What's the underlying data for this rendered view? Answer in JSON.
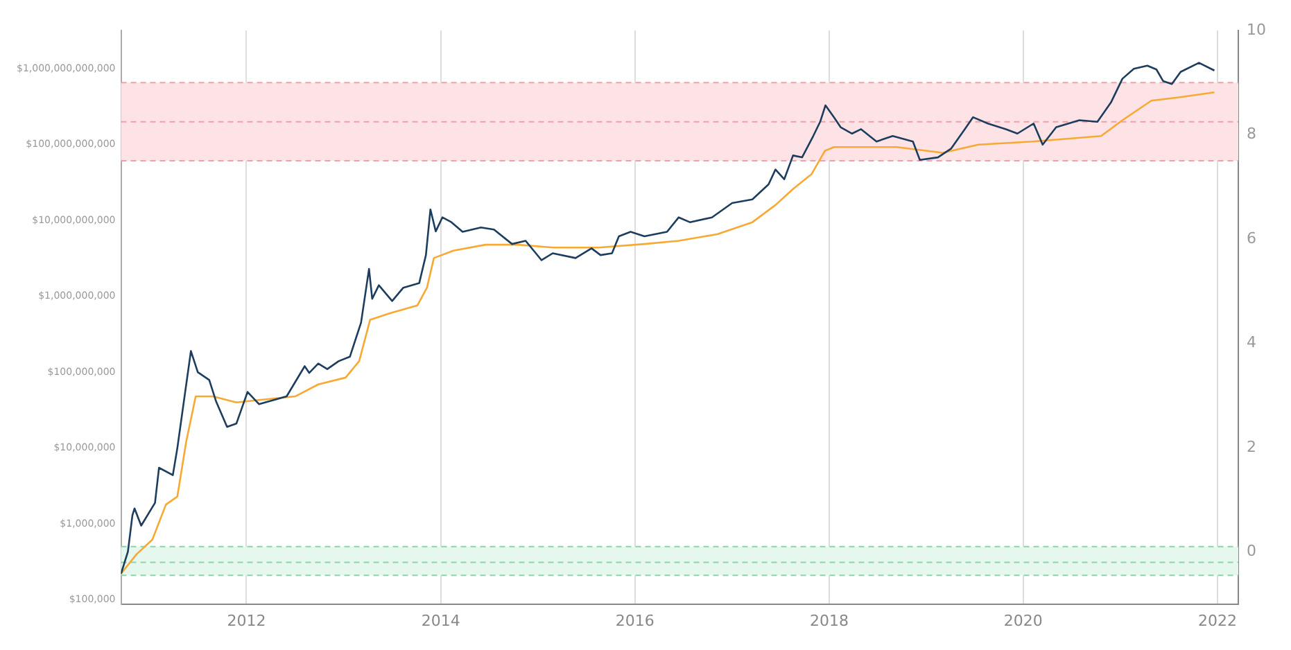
{
  "chart_data": {
    "type": "line",
    "series": [
      {
        "color": "#1c3d5e",
        "x": [
          "2010-09-16",
          "2010-10-12",
          "2010-10-29",
          "2010-11-06",
          "2010-12-01",
          "2011-01-22",
          "2011-02-06",
          "2011-03-30",
          "2011-04-16",
          "2011-05-12",
          "2011-06-06",
          "2011-07-02",
          "2011-08-14",
          "2011-09-09",
          "2011-10-20",
          "2011-11-24",
          "2012-01-05",
          "2012-02-17",
          "2012-05-31",
          "2012-08-07",
          "2012-08-24",
          "2012-09-27",
          "2012-10-31",
          "2012-12-13",
          "2013-01-24",
          "2013-03-07",
          "2013-04-06",
          "2013-04-18",
          "2013-05-13",
          "2013-07-02",
          "2013-08-13",
          "2013-10-12",
          "2013-11-06",
          "2013-11-23",
          "2013-12-13",
          "2014-01-07",
          "2014-02-10",
          "2014-03-24",
          "2014-06-01",
          "2014-07-20",
          "2014-09-26",
          "2014-11-16",
          "2015-01-15",
          "2015-02-26",
          "2015-05-23",
          "2015-07-22",
          "2015-08-25",
          "2015-10-07",
          "2015-11-02",
          "2015-12-16",
          "2016-02-06",
          "2016-05-01",
          "2016-06-14",
          "2016-07-26",
          "2016-10-17",
          "2017-01-01",
          "2017-03-18",
          "2017-05-18",
          "2017-06-13",
          "2017-07-16",
          "2017-08-18",
          "2017-09-21",
          "2017-11-02",
          "2017-11-28",
          "2017-12-18",
          "2018-01-19",
          "2018-02-13",
          "2018-03-28",
          "2018-05-01",
          "2018-06-28",
          "2018-08-28",
          "2018-11-12",
          "2018-12-08",
          "2019-02-14",
          "2019-04-05",
          "2019-05-26",
          "2019-06-26",
          "2019-08-21",
          "2019-10-28",
          "2019-12-10",
          "2020-02-09",
          "2020-03-14",
          "2020-05-04",
          "2020-07-30",
          "2020-10-06",
          "2020-11-26",
          "2021-01-08",
          "2021-02-20",
          "2021-04-12",
          "2021-05-16",
          "2021-06-10",
          "2021-07-13",
          "2021-08-15",
          "2021-10-23",
          "2021-12-20"
        ],
        "values": [
          220000.0,
          430000.0,
          1300000.0,
          1600000.0,
          950000.0,
          1900000.0,
          5500000.0,
          4400000.0,
          10000000.0,
          45000000.0,
          190000000.0,
          100000000.0,
          79000000.0,
          41000000.0,
          19000000.0,
          21000000.0,
          55000000.0,
          38000000.0,
          48000000.0,
          120000000.0,
          98000000.0,
          130000000.0,
          110000000.0,
          140000000.0,
          160000000.0,
          450000000.0,
          2300000000.0,
          930000000.0,
          1400000000.0,
          870000000.0,
          1300000000.0,
          1500000000.0,
          3500000000.0,
          14000000000.0,
          7200000000.0,
          11000000000.0,
          9500000000.0,
          7100000000.0,
          8100000000.0,
          7600000000.0,
          4900000000.0,
          5400000000.0,
          3000000000.0,
          3700000000.0,
          3200000000.0,
          4300000000.0,
          3500000000.0,
          3700000000.0,
          6200000000.0,
          7100000000.0,
          6200000000.0,
          7100000000.0,
          11000000000.0,
          9500000000.0,
          11000000000.0,
          17000000000.0,
          19000000000.0,
          30000000000.0,
          47000000000.0,
          35000000000.0,
          72000000000.0,
          68000000000.0,
          130000000000.0,
          200000000000.0,
          330000000000.0,
          230000000000.0,
          170000000000.0,
          140000000000.0,
          160000000000.0,
          110000000000.0,
          130000000000.0,
          110000000000.0,
          63000000000.0,
          68000000000.0,
          89000000000.0,
          160000000000.0,
          230000000000.0,
          190000000000.0,
          160000000000.0,
          140000000000.0,
          190000000000.0,
          100000000000.0,
          170000000000.0,
          210000000000.0,
          200000000000.0,
          360000000000.0,
          740000000000.0,
          1000000000000.0,
          1100000000000.0,
          980000000000.0,
          690000000000.0,
          630000000000.0,
          910000000000.0,
          1200000000000.0,
          950000000000.0
        ]
      },
      {
        "color": "#f7a933",
        "x": [
          "2010-09-16",
          "2010-11-14",
          "2011-01-12",
          "2011-03-04",
          "2011-04-16",
          "2011-05-19",
          "2011-06-24",
          "2011-08-28",
          "2011-11-24",
          "2012-02-17",
          "2012-07-02",
          "2012-09-27",
          "2013-01-08",
          "2013-02-28",
          "2013-04-10",
          "2013-06-24",
          "2013-10-05",
          "2013-11-10",
          "2013-12-06",
          "2014-02-17",
          "2014-06-18",
          "2014-10-16",
          "2015-02-28",
          "2015-08-18",
          "2016-02-06",
          "2016-06-14",
          "2016-11-06",
          "2017-03-18",
          "2017-06-13",
          "2017-08-18",
          "2017-10-27",
          "2017-12-16",
          "2018-01-19",
          "2018-09-12",
          "2019-03-04",
          "2019-07-16",
          "2020-02-06",
          "2020-10-20",
          "2021-01-08",
          "2021-04-27",
          "2021-08-08",
          "2021-12-20"
        ],
        "values": [
          220000.0,
          400000.0,
          620000.0,
          1800000.0,
          2300000.0,
          12000000.0,
          48000000.0,
          48000000.0,
          40000000.0,
          43000000.0,
          48000000.0,
          69000000.0,
          85000000.0,
          140000000.0,
          490000000.0,
          600000000.0,
          760000000.0,
          1300000000.0,
          3200000000.0,
          4000000000.0,
          4800000000.0,
          4800000000.0,
          4400000000.0,
          4400000000.0,
          4900000000.0,
          5400000000.0,
          6600000000.0,
          9500000000.0,
          16000000000.0,
          26000000000.0,
          41000000000.0,
          83000000000.0,
          93000000000.0,
          93000000000.0,
          78000000000.0,
          100000000000.0,
          110000000000.0,
          130000000000.0,
          210000000000.0,
          380000000000.0,
          420000000000.0,
          490000000000.0
        ]
      }
    ],
    "xlim": [
      "2010-09-16",
      "2022-03-20"
    ],
    "xticks": [
      "2012",
      "2014",
      "2016",
      "2018",
      "2020",
      "2022"
    ],
    "log": "y",
    "ylim": [
      88000,
      3200000000000.0
    ],
    "yticks": [
      {
        "value": 100000,
        "label": "$100,000"
      },
      {
        "value": 1000000,
        "label": "$1,000,000"
      },
      {
        "value": 10000000,
        "label": "$10,000,000"
      },
      {
        "value": 100000000,
        "label": "$100,000,000"
      },
      {
        "value": 1000000000,
        "label": "$1,000,000,000"
      },
      {
        "value": 10000000000,
        "label": "$10,000,000,000"
      },
      {
        "value": 100000000000,
        "label": "$100,000,000,000"
      },
      {
        "value": 1000000000000,
        "label": "$1,000,000,000,000"
      }
    ],
    "y2lim": [
      -1,
      10
    ],
    "y2ticks": [
      0,
      2,
      4,
      6,
      8,
      10
    ],
    "bands": [
      {
        "axis": "y2",
        "from": 7.5,
        "to": 9,
        "color": "#fde3e6"
      },
      {
        "axis": "y2",
        "from": -0.45,
        "to": 0.1,
        "color": "#e6f7ee"
      }
    ],
    "ref_lines": [
      {
        "axis": "y2",
        "value": 9,
        "color": "#f0a0a8",
        "line_style": "dashed"
      },
      {
        "axis": "y2",
        "value": 8.25,
        "color": "#f0a0a8",
        "line_style": "dashed"
      },
      {
        "axis": "y2",
        "value": 7.5,
        "color": "#f0a0a8",
        "line_style": "dashed"
      },
      {
        "axis": "y2",
        "value": 0.1,
        "color": "#8fd4a8",
        "line_style": "dashed"
      },
      {
        "axis": "y2",
        "value": -0.2,
        "color": "#8fd4a8",
        "line_style": "dashed"
      },
      {
        "axis": "y2",
        "value": -0.45,
        "color": "#8fd4a8",
        "line_style": "dashed"
      }
    ],
    "grid": "x",
    "marker": "none",
    "line_style": "solid",
    "legend": false
  }
}
